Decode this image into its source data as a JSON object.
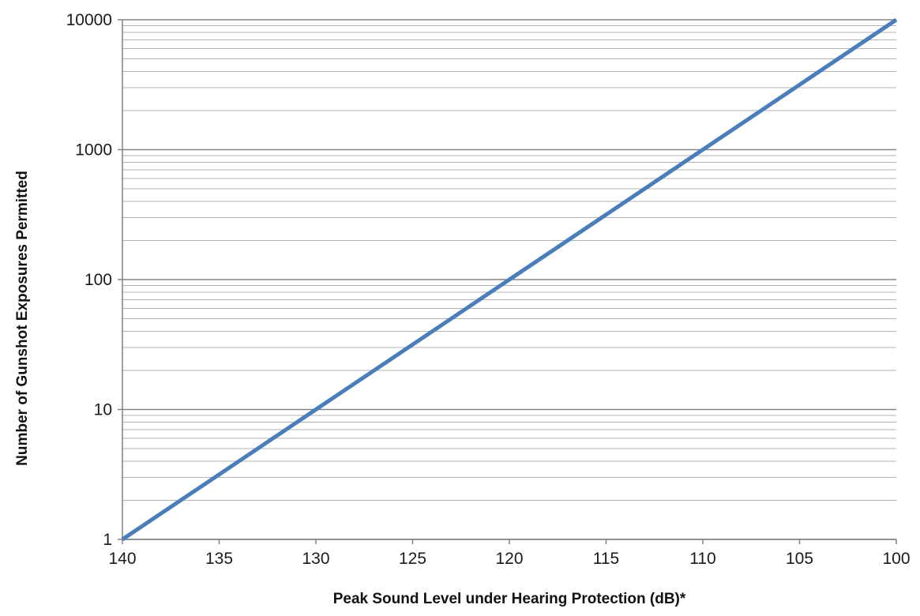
{
  "chart_data": {
    "type": "line",
    "title": "",
    "xlabel": "Peak Sound Level under Hearing Protection (dB)*",
    "ylabel": "Number of Gunshot Exposures Permitted",
    "x_scale": "linear",
    "x_reversed": true,
    "xlim": [
      140,
      100
    ],
    "y_scale": "log",
    "ylim": [
      1,
      10000
    ],
    "x_ticks": [
      "140",
      "135",
      "130",
      "125",
      "120",
      "115",
      "110",
      "105",
      "100"
    ],
    "y_ticks": [
      "1",
      "10",
      "100",
      "1000",
      "10000"
    ],
    "grid": {
      "horizontal_major": true,
      "horizontal_minor": true,
      "vertical": false
    },
    "legend": "none",
    "series": [
      {
        "color": "#4a7ebb",
        "x": [
          140,
          135,
          130,
          125,
          120,
          115,
          110,
          105,
          100
        ],
        "y": [
          1,
          3.16,
          10,
          31.6,
          100,
          316,
          1000,
          3160,
          10000
        ]
      }
    ]
  }
}
